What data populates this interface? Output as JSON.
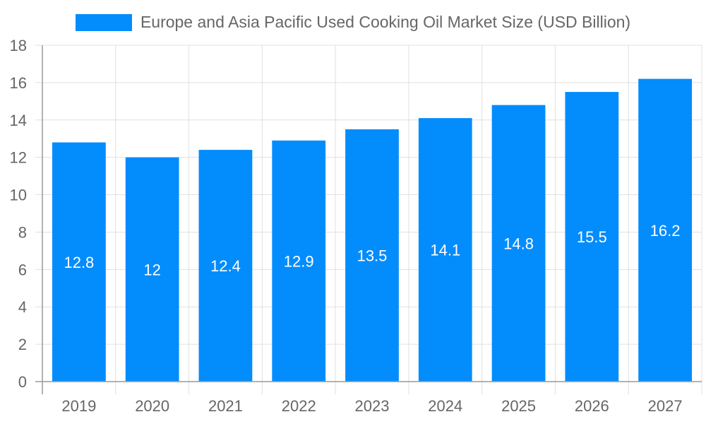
{
  "chart_data": {
    "type": "bar",
    "title": "",
    "legend": [
      "Europe and Asia Pacific Used Cooking Oil Market Size (USD Billion)"
    ],
    "legend_position": "top",
    "categories": [
      "2019",
      "2020",
      "2021",
      "2022",
      "2023",
      "2024",
      "2025",
      "2026",
      "2027"
    ],
    "series": [
      {
        "name": "Europe and Asia Pacific Used Cooking Oil Market Size (USD Billion)",
        "values": [
          12.8,
          12,
          12.4,
          12.9,
          13.5,
          14.1,
          14.8,
          15.5,
          16.2
        ],
        "color": "#038cfc"
      }
    ],
    "data_labels": [
      "12.8",
      "12",
      "12.4",
      "12.9",
      "13.5",
      "14.1",
      "14.8",
      "15.5",
      "16.2"
    ],
    "xlabel": "",
    "ylabel": "",
    "ylim": [
      0,
      18
    ],
    "yticks": [
      "0",
      "2",
      "4",
      "6",
      "8",
      "10",
      "12",
      "14",
      "16",
      "18"
    ],
    "grid": true
  },
  "legend": {
    "label": "Europe and Asia Pacific Used Cooking Oil Market Size (USD Billion)",
    "color": "#038cfc"
  }
}
